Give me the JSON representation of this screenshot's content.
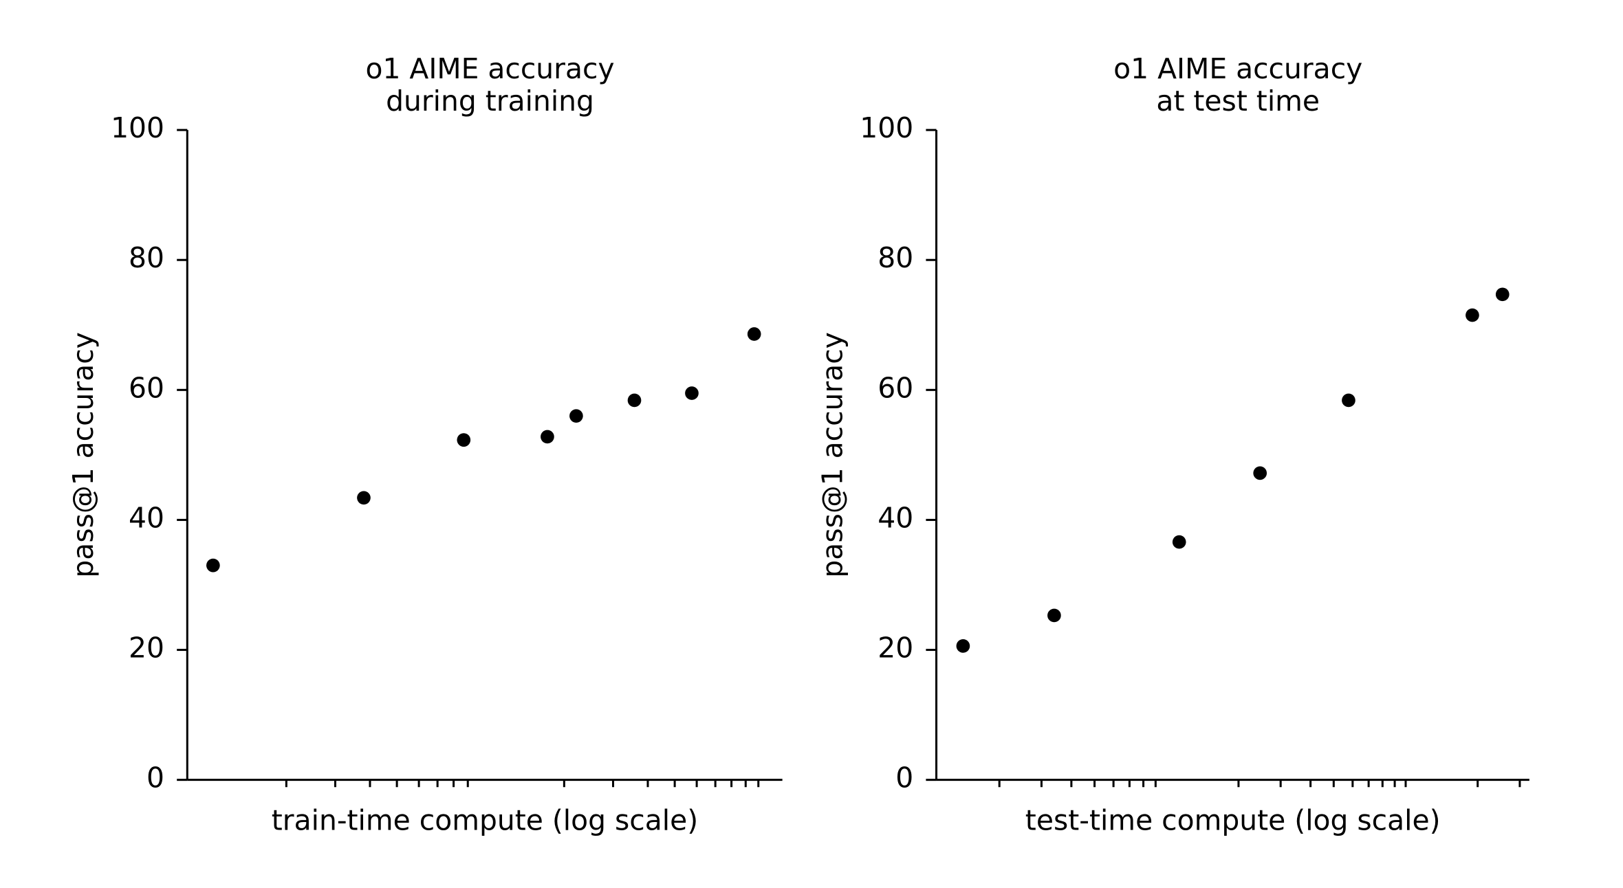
{
  "chart_data": [
    {
      "type": "scatter",
      "title": [
        "o1 AIME accuracy",
        "during training"
      ],
      "x_label": "train-time compute (log scale)",
      "y_label": "pass@1 accuracy",
      "x": [
        1.09,
        3.8,
        8.7,
        17.4,
        22.1,
        35.8,
        57.6,
        96.6
      ],
      "values": [
        33.0,
        43.4,
        52.3,
        52.8,
        56.0,
        58.4,
        59.5,
        68.6
      ],
      "color": "#000000",
      "xscale": "log",
      "xlim": [
        0.88,
        122
      ],
      "xticks": [
        2,
        3,
        4,
        5,
        6,
        7,
        8,
        9,
        20,
        30,
        40,
        50,
        60,
        70,
        80,
        90,
        100
      ],
      "ylim": [
        0,
        100
      ],
      "yticks": [
        0,
        20,
        40,
        60,
        80,
        100
      ],
      "grid": false
    },
    {
      "type": "scatter",
      "title": [
        "o1 AIME accuracy",
        "at test time"
      ],
      "x_label": "test-time compute (log scale)",
      "y_label": "pass@1 accuracy",
      "x": [
        1.41,
        3.39,
        11.3,
        24.6,
        57.7,
        190,
        254
      ],
      "values": [
        20.6,
        25.3,
        36.6,
        47.2,
        58.4,
        71.5,
        74.7
      ],
      "color": "#000000",
      "xscale": "log",
      "xlim": [
        1.09,
        329
      ],
      "xticks": [
        2,
        3,
        4,
        5,
        6,
        7,
        8,
        9,
        20,
        30,
        40,
        50,
        60,
        70,
        80,
        90,
        100,
        200,
        300
      ],
      "ylim": [
        0,
        100
      ],
      "yticks": [
        0,
        20,
        40,
        60,
        80,
        100
      ],
      "grid": false
    }
  ]
}
